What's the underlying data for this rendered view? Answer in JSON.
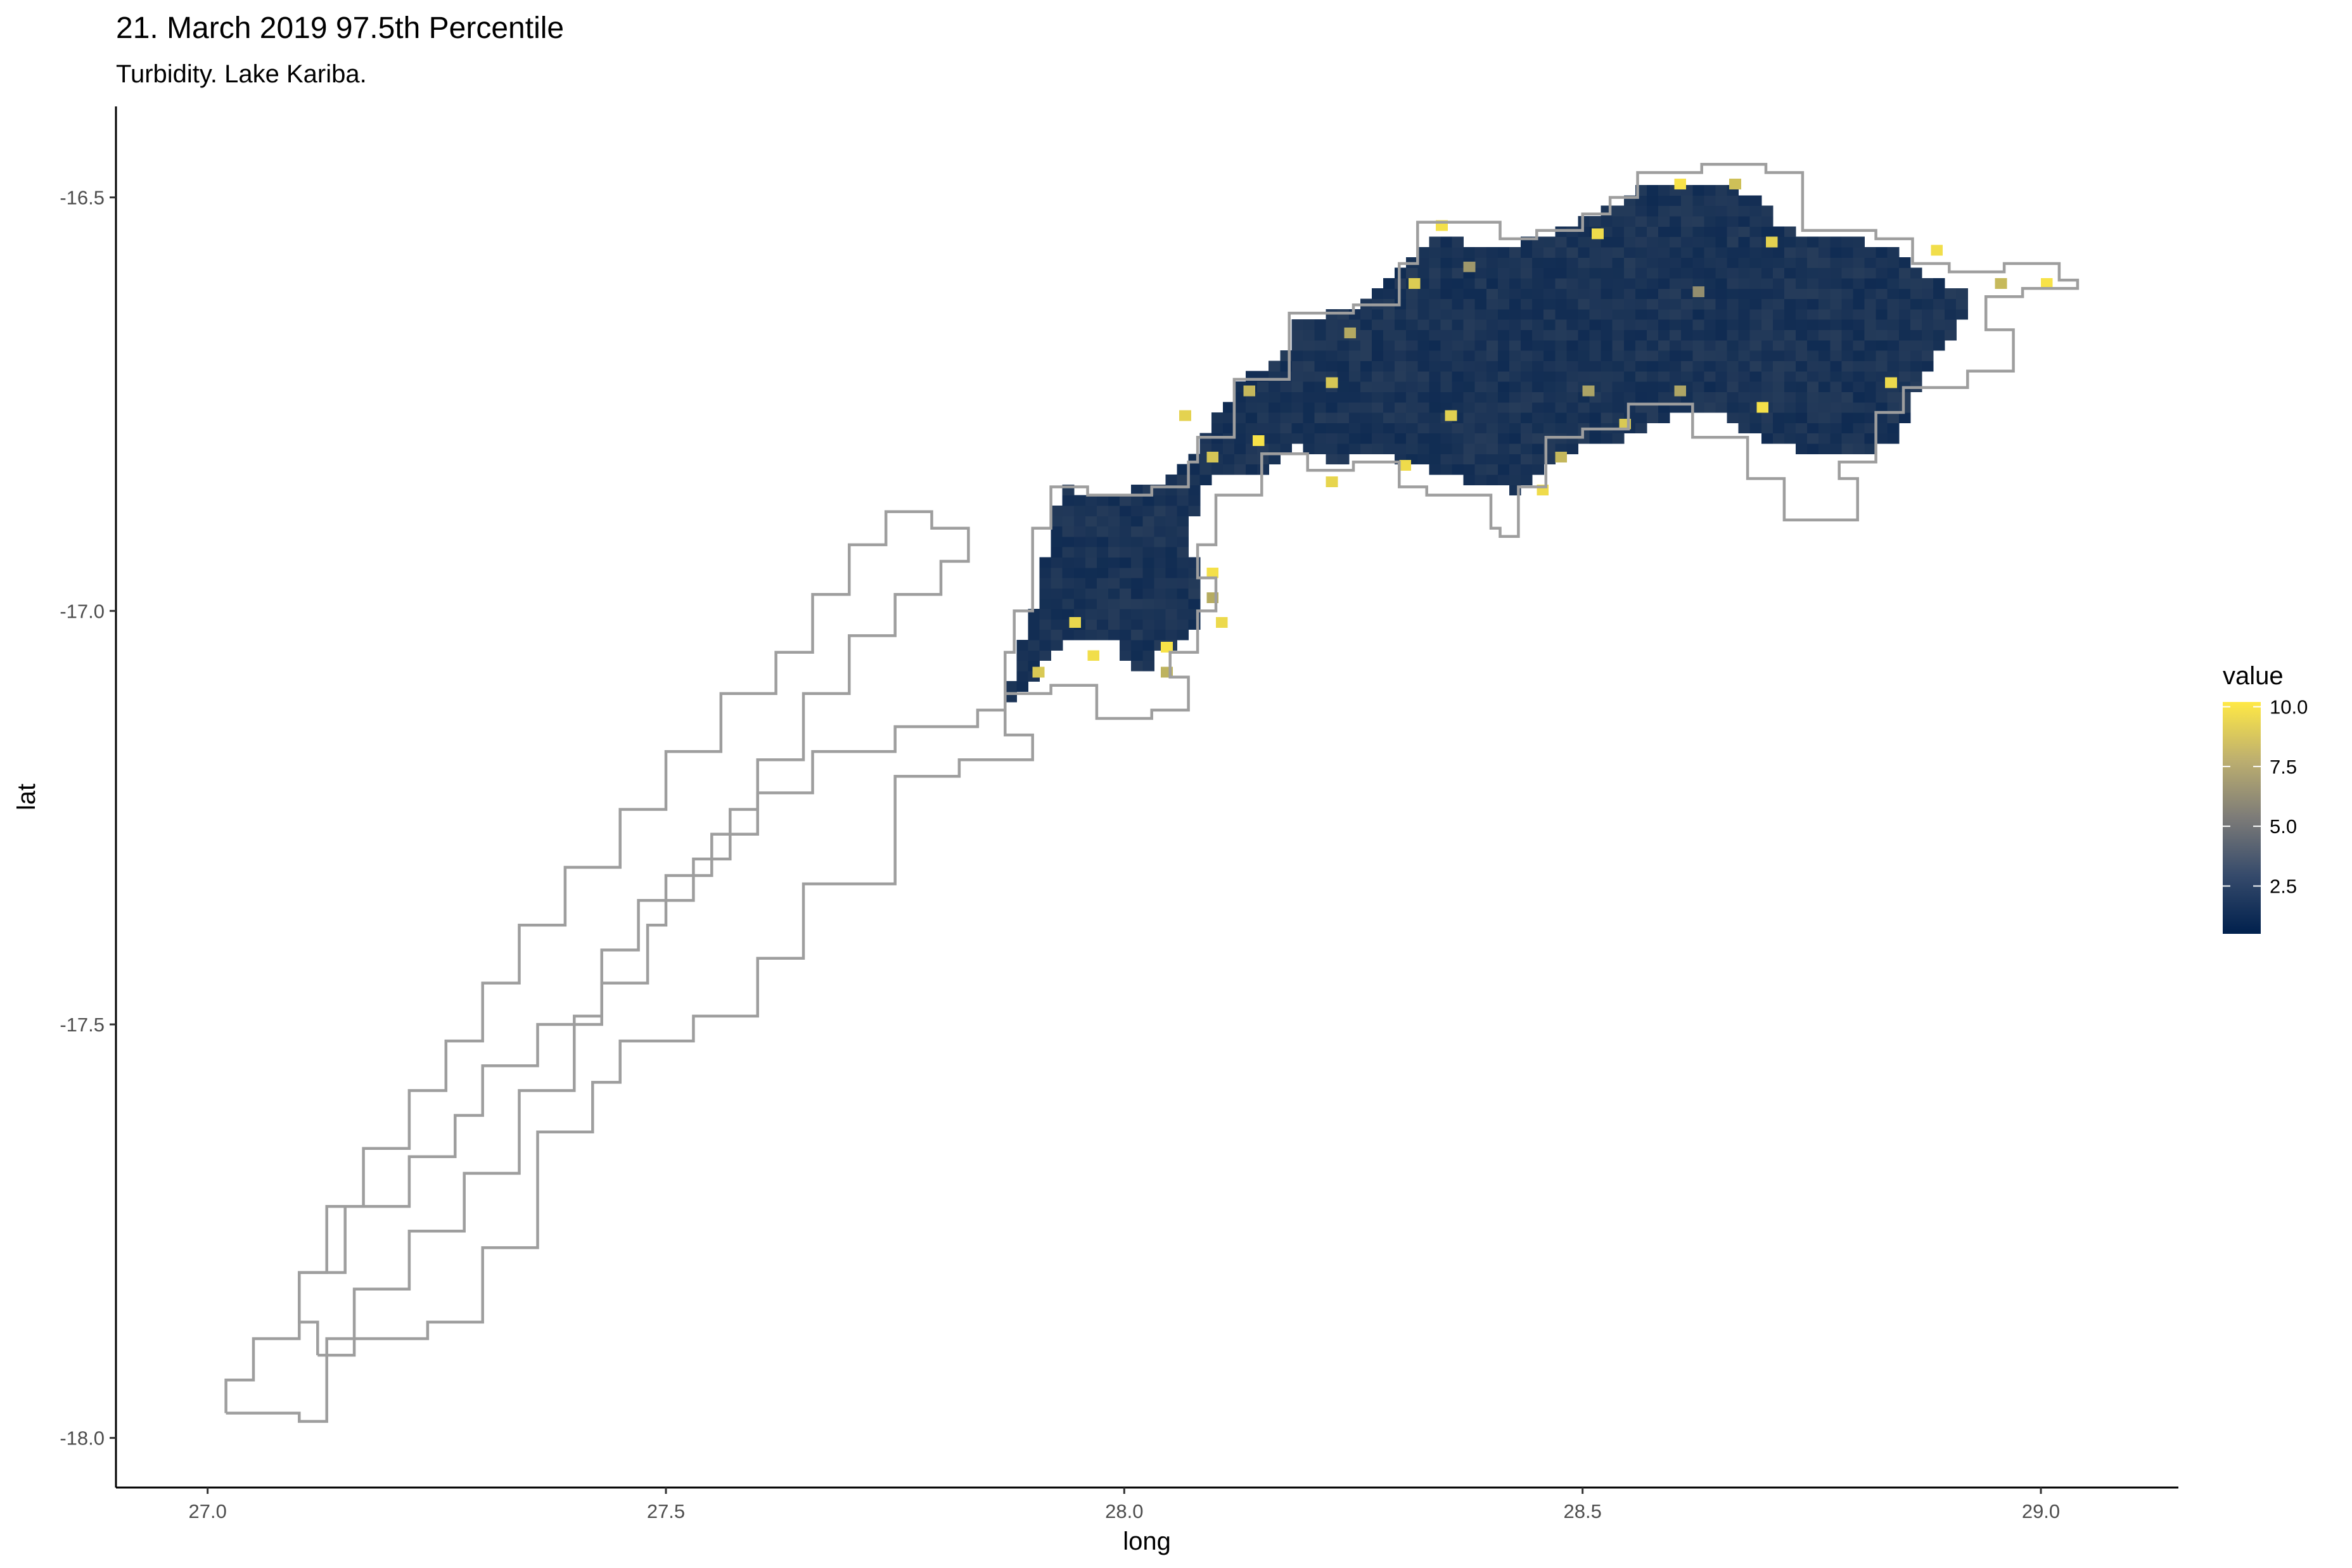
{
  "chart_data": {
    "type": "heatmap",
    "title": "21. March 2019 97.5th Percentile",
    "subtitle": "Turbidity. Lake Kariba.",
    "xlabel": "long",
    "ylabel": "lat",
    "xlim": [
      26.9,
      29.15
    ],
    "ylim": [
      -18.06,
      -16.39
    ],
    "x_ticks": [
      27.0,
      27.5,
      28.0,
      28.5,
      29.0
    ],
    "x_tick_labels": [
      "27.0",
      "27.5",
      "28.0",
      "28.5",
      "29.0"
    ],
    "y_ticks": [
      -16.5,
      -17.0,
      -17.5,
      -18.0
    ],
    "y_tick_labels": [
      "-16.5",
      "-17.0",
      "-17.5",
      "-18.0"
    ],
    "grid": false,
    "legend": {
      "title": "value",
      "position": "right",
      "range": [
        0.5,
        10.2
      ],
      "breaks": [
        2.5,
        5.0,
        7.5,
        10.0
      ],
      "break_labels": [
        "2.5",
        "5.0",
        "7.5",
        "10.0"
      ],
      "colors": {
        "low": "#00204d",
        "mid": "#7c7b78",
        "high": "#ffe945"
      }
    },
    "outline_color": "#9e9e9e",
    "cell_size_deg": 0.0125,
    "lake_outline": [
      [
        27.02,
        -17.97
      ],
      [
        27.1,
        -17.98
      ],
      [
        27.13,
        -17.88
      ],
      [
        27.24,
        -17.86
      ],
      [
        27.3,
        -17.77
      ],
      [
        27.36,
        -17.63
      ],
      [
        27.42,
        -17.57
      ],
      [
        27.45,
        -17.52
      ],
      [
        27.53,
        -17.49
      ],
      [
        27.6,
        -17.42
      ],
      [
        27.65,
        -17.33
      ],
      [
        27.75,
        -17.2
      ],
      [
        27.82,
        -17.18
      ],
      [
        27.9,
        -17.15
      ],
      [
        27.87,
        -17.05
      ],
      [
        27.88,
        -17.0
      ],
      [
        27.9,
        -16.9
      ],
      [
        27.92,
        -16.85
      ],
      [
        27.96,
        -16.86
      ],
      [
        28.03,
        -16.85
      ],
      [
        28.07,
        -16.82
      ],
      [
        28.08,
        -16.79
      ],
      [
        28.12,
        -16.72
      ],
      [
        28.18,
        -16.7
      ],
      [
        28.18,
        -16.64
      ],
      [
        28.25,
        -16.63
      ],
      [
        28.3,
        -16.58
      ],
      [
        28.32,
        -16.53
      ],
      [
        28.41,
        -16.55
      ],
      [
        28.45,
        -16.54
      ],
      [
        28.5,
        -16.52
      ],
      [
        28.53,
        -16.5
      ],
      [
        28.56,
        -16.47
      ],
      [
        28.63,
        -16.46
      ],
      [
        28.7,
        -16.47
      ],
      [
        28.74,
        -16.54
      ],
      [
        28.78,
        -16.54
      ],
      [
        28.82,
        -16.55
      ],
      [
        28.86,
        -16.58
      ],
      [
        28.9,
        -16.59
      ],
      [
        28.96,
        -16.58
      ],
      [
        29.02,
        -16.6
      ],
      [
        29.04,
        -16.61
      ],
      [
        28.98,
        -16.62
      ],
      [
        28.94,
        -16.66
      ],
      [
        28.97,
        -16.71
      ],
      [
        28.92,
        -16.73
      ],
      [
        28.85,
        -16.76
      ],
      [
        28.82,
        -16.82
      ],
      [
        28.78,
        -16.84
      ],
      [
        28.8,
        -16.89
      ],
      [
        28.72,
        -16.84
      ],
      [
        28.68,
        -16.79
      ],
      [
        28.62,
        -16.75
      ],
      [
        28.58,
        -16.75
      ],
      [
        28.55,
        -16.78
      ],
      [
        28.5,
        -16.79
      ],
      [
        28.46,
        -16.8
      ],
      [
        28.46,
        -16.85
      ],
      [
        28.43,
        -16.91
      ],
      [
        28.41,
        -16.9
      ],
      [
        28.4,
        -16.86
      ],
      [
        28.33,
        -16.85
      ],
      [
        28.3,
        -16.82
      ],
      [
        28.25,
        -16.83
      ],
      [
        28.2,
        -16.81
      ],
      [
        28.15,
        -16.86
      ],
      [
        28.1,
        -16.86
      ],
      [
        28.1,
        -16.9
      ],
      [
        28.1,
        -16.92
      ],
      [
        28.08,
        -16.96
      ],
      [
        28.1,
        -17.0
      ],
      [
        28.08,
        -17.05
      ],
      [
        28.05,
        -17.08
      ],
      [
        28.07,
        -17.12
      ],
      [
        28.03,
        -17.13
      ],
      [
        27.97,
        -17.09
      ],
      [
        27.92,
        -17.1
      ],
      [
        27.87,
        -17.12
      ],
      [
        27.84,
        -17.14
      ],
      [
        27.75,
        -17.17
      ],
      [
        27.66,
        -17.22
      ],
      [
        27.6,
        -17.27
      ],
      [
        27.55,
        -17.32
      ],
      [
        27.5,
        -17.38
      ],
      [
        27.48,
        -17.45
      ],
      [
        27.43,
        -17.5
      ],
      [
        27.36,
        -17.55
      ],
      [
        27.3,
        -17.61
      ],
      [
        27.27,
        -17.66
      ],
      [
        27.22,
        -17.72
      ],
      [
        27.15,
        -17.8
      ],
      [
        27.1,
        -17.88
      ],
      [
        27.05,
        -17.93
      ],
      [
        27.02,
        -17.97
      ]
    ],
    "left_arm_outline": [
      [
        27.12,
        -17.9
      ],
      [
        27.16,
        -17.82
      ],
      [
        27.22,
        -17.75
      ],
      [
        27.28,
        -17.68
      ],
      [
        27.34,
        -17.58
      ],
      [
        27.4,
        -17.49
      ],
      [
        27.43,
        -17.41
      ],
      [
        27.47,
        -17.35
      ],
      [
        27.53,
        -17.3
      ],
      [
        27.57,
        -17.24
      ],
      [
        27.6,
        -17.18
      ],
      [
        27.65,
        -17.1
      ],
      [
        27.7,
        -17.03
      ],
      [
        27.75,
        -16.98
      ],
      [
        27.8,
        -16.94
      ],
      [
        27.83,
        -16.9
      ],
      [
        27.79,
        -16.88
      ],
      [
        27.74,
        -16.92
      ],
      [
        27.7,
        -16.98
      ],
      [
        27.66,
        -17.05
      ],
      [
        27.62,
        -17.1
      ],
      [
        27.56,
        -17.17
      ],
      [
        27.5,
        -17.24
      ],
      [
        27.45,
        -17.31
      ],
      [
        27.39,
        -17.38
      ],
      [
        27.34,
        -17.45
      ],
      [
        27.3,
        -17.52
      ],
      [
        27.26,
        -17.58
      ],
      [
        27.22,
        -17.65
      ],
      [
        27.17,
        -17.72
      ],
      [
        27.13,
        -17.8
      ],
      [
        27.1,
        -17.86
      ],
      [
        27.12,
        -17.9
      ]
    ],
    "water_region": [
      [
        27.87,
        -17.11
      ],
      [
        27.9,
        -17.0
      ],
      [
        27.93,
        -16.85
      ],
      [
        27.98,
        -16.86
      ],
      [
        28.03,
        -16.85
      ],
      [
        28.07,
        -16.82
      ],
      [
        28.09,
        -16.78
      ],
      [
        28.13,
        -16.72
      ],
      [
        28.17,
        -16.7
      ],
      [
        28.19,
        -16.65
      ],
      [
        28.26,
        -16.63
      ],
      [
        28.31,
        -16.58
      ],
      [
        28.33,
        -16.55
      ],
      [
        28.42,
        -16.56
      ],
      [
        28.47,
        -16.54
      ],
      [
        28.51,
        -16.52
      ],
      [
        28.55,
        -16.5
      ],
      [
        28.58,
        -16.48
      ],
      [
        28.64,
        -16.48
      ],
      [
        28.69,
        -16.5
      ],
      [
        28.72,
        -16.54
      ],
      [
        28.78,
        -16.55
      ],
      [
        28.84,
        -16.56
      ],
      [
        28.88,
        -16.6
      ],
      [
        28.92,
        -16.61
      ],
      [
        28.91,
        -16.66
      ],
      [
        28.88,
        -16.7
      ],
      [
        28.86,
        -16.74
      ],
      [
        28.84,
        -16.8
      ],
      [
        28.78,
        -16.81
      ],
      [
        28.7,
        -16.8
      ],
      [
        28.65,
        -16.76
      ],
      [
        28.6,
        -16.76
      ],
      [
        28.55,
        -16.79
      ],
      [
        28.5,
        -16.8
      ],
      [
        28.46,
        -16.82
      ],
      [
        28.43,
        -16.86
      ],
      [
        28.41,
        -16.85
      ],
      [
        28.37,
        -16.84
      ],
      [
        28.33,
        -16.83
      ],
      [
        28.28,
        -16.81
      ],
      [
        28.23,
        -16.82
      ],
      [
        28.19,
        -16.8
      ],
      [
        28.15,
        -16.83
      ],
      [
        28.1,
        -16.83
      ],
      [
        28.08,
        -16.87
      ],
      [
        28.07,
        -16.92
      ],
      [
        28.09,
        -16.97
      ],
      [
        28.08,
        -17.02
      ],
      [
        28.04,
        -17.05
      ],
      [
        28.02,
        -17.08
      ],
      [
        27.99,
        -17.04
      ],
      [
        27.95,
        -17.03
      ],
      [
        27.92,
        -17.05
      ],
      [
        27.89,
        -17.1
      ],
      [
        27.87,
        -17.11
      ]
    ],
    "bright_cells": [
      [
        28.34,
        -16.54,
        9.8
      ],
      [
        28.51,
        -16.55,
        9.6
      ],
      [
        28.6,
        -16.49,
        9.9
      ],
      [
        28.66,
        -16.49,
        8.4
      ],
      [
        28.7,
        -16.56,
        9.2
      ],
      [
        28.88,
        -16.57,
        9.7
      ],
      [
        28.95,
        -16.61,
        8.1
      ],
      [
        29.0,
        -16.61,
        9.9
      ],
      [
        28.83,
        -16.73,
        9.5
      ],
      [
        28.69,
        -16.76,
        9.8
      ],
      [
        28.6,
        -16.74,
        7.2
      ],
      [
        28.54,
        -16.78,
        8.8
      ],
      [
        28.47,
        -16.82,
        8.0
      ],
      [
        28.45,
        -16.86,
        9.6
      ],
      [
        28.35,
        -16.77,
        9.1
      ],
      [
        28.22,
        -16.73,
        8.7
      ],
      [
        28.24,
        -16.67,
        7.4
      ],
      [
        28.22,
        -16.85,
        9.3
      ],
      [
        28.14,
        -16.8,
        9.9
      ],
      [
        28.09,
        -16.82,
        8.6
      ],
      [
        28.06,
        -16.77,
        9.2
      ],
      [
        28.13,
        -16.74,
        8.0
      ],
      [
        28.09,
        -16.96,
        9.8
      ],
      [
        28.1,
        -17.02,
        9.5
      ],
      [
        28.04,
        -17.05,
        9.9
      ],
      [
        28.04,
        -17.08,
        7.8
      ],
      [
        27.96,
        -17.06,
        9.7
      ],
      [
        27.94,
        -17.02,
        9.4
      ],
      [
        27.9,
        -17.08,
        8.8
      ],
      [
        28.09,
        -16.99,
        7.5
      ],
      [
        28.31,
        -16.61,
        8.9
      ],
      [
        28.37,
        -16.59,
        6.6
      ],
      [
        28.5,
        -16.74,
        7.1
      ],
      [
        28.3,
        -16.83,
        9.6
      ],
      [
        28.62,
        -16.62,
        6.2
      ]
    ]
  }
}
